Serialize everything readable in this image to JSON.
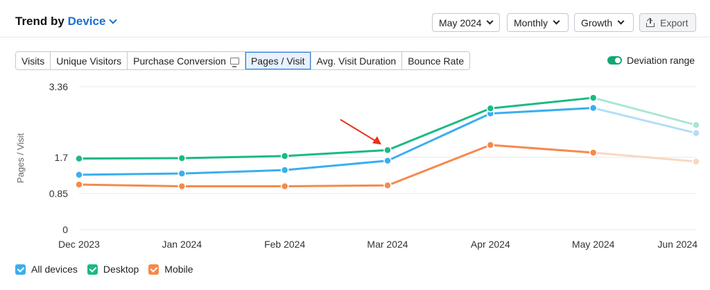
{
  "header": {
    "title_prefix": "Trend by",
    "title_dimension": "Device",
    "period": "May 2024",
    "granularity": "Monthly",
    "metric_type": "Growth",
    "export_label": "Export"
  },
  "tabs": [
    {
      "label": "Visits",
      "active": false
    },
    {
      "label": "Unique Visitors",
      "active": false
    },
    {
      "label": "Purchase Conversion",
      "active": false,
      "icon": "monitor-icon"
    },
    {
      "label": "Pages / Visit",
      "active": true
    },
    {
      "label": "Avg. Visit Duration",
      "active": false
    },
    {
      "label": "Bounce Rate",
      "active": false
    }
  ],
  "deviation": {
    "label": "Deviation range",
    "enabled": true
  },
  "legend": [
    {
      "label": "All devices",
      "color": "#3aaeef"
    },
    {
      "label": "Desktop",
      "color": "#1bb983"
    },
    {
      "label": "Mobile",
      "color": "#f58a4b"
    }
  ],
  "chart_data": {
    "type": "line",
    "title": "",
    "xlabel": "",
    "ylabel": "Pages / Visit",
    "ylim": [
      0,
      3.36
    ],
    "yticks": [
      0,
      0.85,
      1.7,
      3.36
    ],
    "ytick_labels": [
      "0",
      "0.85",
      "1.7",
      "3.36"
    ],
    "categories": [
      "Dec 2023",
      "Jan 2024",
      "Feb 2024",
      "Mar 2024",
      "Apr 2024",
      "May 2024",
      "Jun 2024"
    ],
    "projected_from_index": 5,
    "grid": true,
    "annotation": {
      "type": "arrow",
      "target_series": "Desktop",
      "target_index": 3,
      "color": "#e8321e"
    },
    "series": [
      {
        "name": "Desktop",
        "color": "#1bb983",
        "faded_color": "#a9e6d3",
        "values": [
          1.67,
          1.68,
          1.73,
          1.87,
          2.85,
          3.1,
          2.46
        ]
      },
      {
        "name": "All devices",
        "color": "#3aaeef",
        "faded_color": "#b3def8",
        "values": [
          1.29,
          1.32,
          1.4,
          1.62,
          2.73,
          2.86,
          2.27
        ]
      },
      {
        "name": "Mobile",
        "color": "#f58a4b",
        "faded_color": "#fbd7c0",
        "values": [
          1.06,
          1.02,
          1.02,
          1.04,
          1.99,
          1.81,
          1.6
        ]
      }
    ]
  }
}
